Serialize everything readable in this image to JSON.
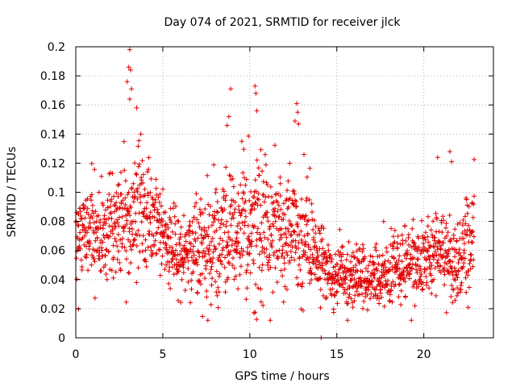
{
  "chart_data": {
    "type": "scatter",
    "title": "Day 074 of 2021, SRMTID for receiver jlck",
    "xlabel": "GPS time / hours",
    "ylabel": "SRMTID / TECUs",
    "xlim": [
      0,
      24
    ],
    "ylim": [
      0,
      0.2
    ],
    "x_ticks": [
      0,
      5,
      10,
      15,
      20
    ],
    "x_tick_labels": [
      "0",
      "5",
      "10",
      "15",
      "20"
    ],
    "y_ticks": [
      0,
      0.02,
      0.04,
      0.06,
      0.08,
      0.1,
      0.12,
      0.14,
      0.16,
      0.18,
      0.2
    ],
    "y_tick_labels": [
      "0",
      "0.02",
      "0.04",
      "0.06",
      "0.08",
      "0.1",
      "0.12",
      "0.14",
      "0.16",
      "0.18",
      "0.2"
    ],
    "grid": true,
    "marker": "+",
    "color": "#e00000",
    "series": [
      {
        "name": "SRMTID",
        "generation": {
          "x_start": 0.0,
          "x_end": 22.9,
          "step_hours": 0.0125,
          "points_per_step": 1,
          "seed": 74
        },
        "trend": [
          [
            0,
            0.07
          ],
          [
            1,
            0.072
          ],
          [
            2,
            0.075
          ],
          [
            3,
            0.085
          ],
          [
            4,
            0.088
          ],
          [
            5,
            0.07
          ],
          [
            6,
            0.055
          ],
          [
            7,
            0.062
          ],
          [
            8,
            0.065
          ],
          [
            9,
            0.075
          ],
          [
            10,
            0.075
          ],
          [
            11,
            0.08
          ],
          [
            12,
            0.075
          ],
          [
            13,
            0.075
          ],
          [
            14,
            0.055
          ],
          [
            14.5,
            0.045
          ],
          [
            15,
            0.042
          ],
          [
            17,
            0.042
          ],
          [
            18,
            0.045
          ],
          [
            19,
            0.05
          ],
          [
            20,
            0.055
          ],
          [
            21,
            0.06
          ],
          [
            22,
            0.055
          ],
          [
            22.9,
            0.065
          ]
        ],
        "spread": [
          [
            0,
            0.018
          ],
          [
            3,
            0.035
          ],
          [
            4,
            0.03
          ],
          [
            5,
            0.02
          ],
          [
            6,
            0.02
          ],
          [
            9,
            0.035
          ],
          [
            11,
            0.035
          ],
          [
            13,
            0.03
          ],
          [
            14,
            0.015
          ],
          [
            17,
            0.015
          ],
          [
            20,
            0.02
          ],
          [
            22.9,
            0.025
          ]
        ],
        "outliers": [
          {
            "x": 3.1,
            "y": 0.198
          },
          {
            "x": 3.05,
            "y": 0.186
          },
          {
            "x": 3.15,
            "y": 0.184
          },
          {
            "x": 2.95,
            "y": 0.176
          },
          {
            "x": 3.2,
            "y": 0.171
          },
          {
            "x": 3.1,
            "y": 0.164
          },
          {
            "x": 3.5,
            "y": 0.158
          },
          {
            "x": 8.9,
            "y": 0.171
          },
          {
            "x": 8.8,
            "y": 0.152
          },
          {
            "x": 8.7,
            "y": 0.146
          },
          {
            "x": 10.3,
            "y": 0.173
          },
          {
            "x": 10.35,
            "y": 0.168
          },
          {
            "x": 10.4,
            "y": 0.156
          },
          {
            "x": 12.7,
            "y": 0.161
          },
          {
            "x": 12.75,
            "y": 0.155
          },
          {
            "x": 12.8,
            "y": 0.147
          },
          {
            "x": 12.6,
            "y": 0.149
          },
          {
            "x": 21.5,
            "y": 0.128
          },
          {
            "x": 21.6,
            "y": 0.121
          },
          {
            "x": 20.8,
            "y": 0.124
          },
          {
            "x": 14.1,
            "y": 0.0
          }
        ]
      }
    ]
  }
}
